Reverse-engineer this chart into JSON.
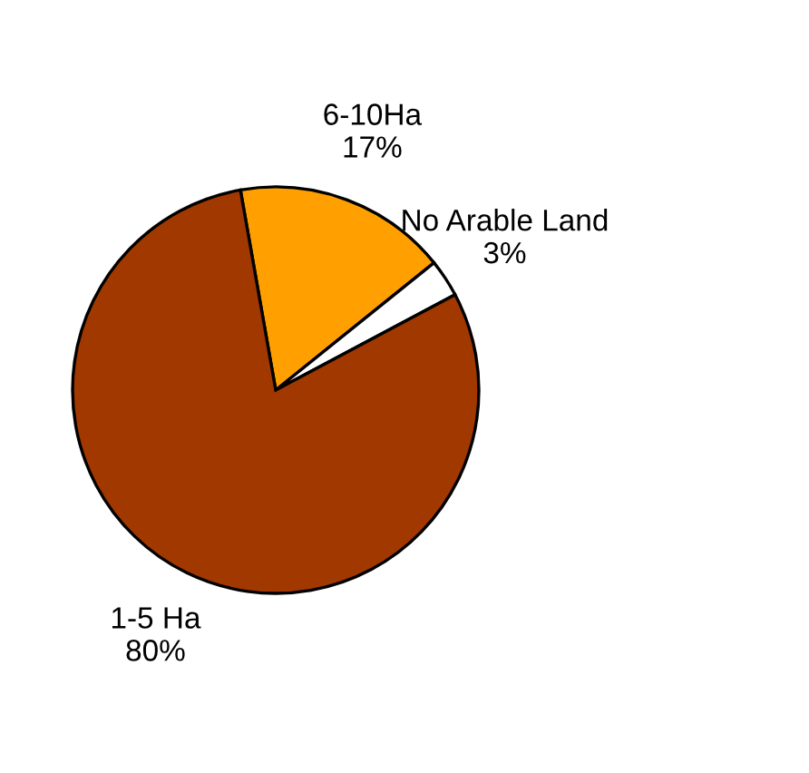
{
  "chart_data": {
    "type": "pie",
    "categories": [
      "6-10Ha",
      "No Arable Land",
      "1-5 Ha"
    ],
    "values": [
      17,
      3,
      80
    ],
    "colors": [
      "#ff9f00",
      "#ffffff",
      "#a03800"
    ],
    "value_labels": [
      "17%",
      "3%",
      "80%"
    ]
  }
}
